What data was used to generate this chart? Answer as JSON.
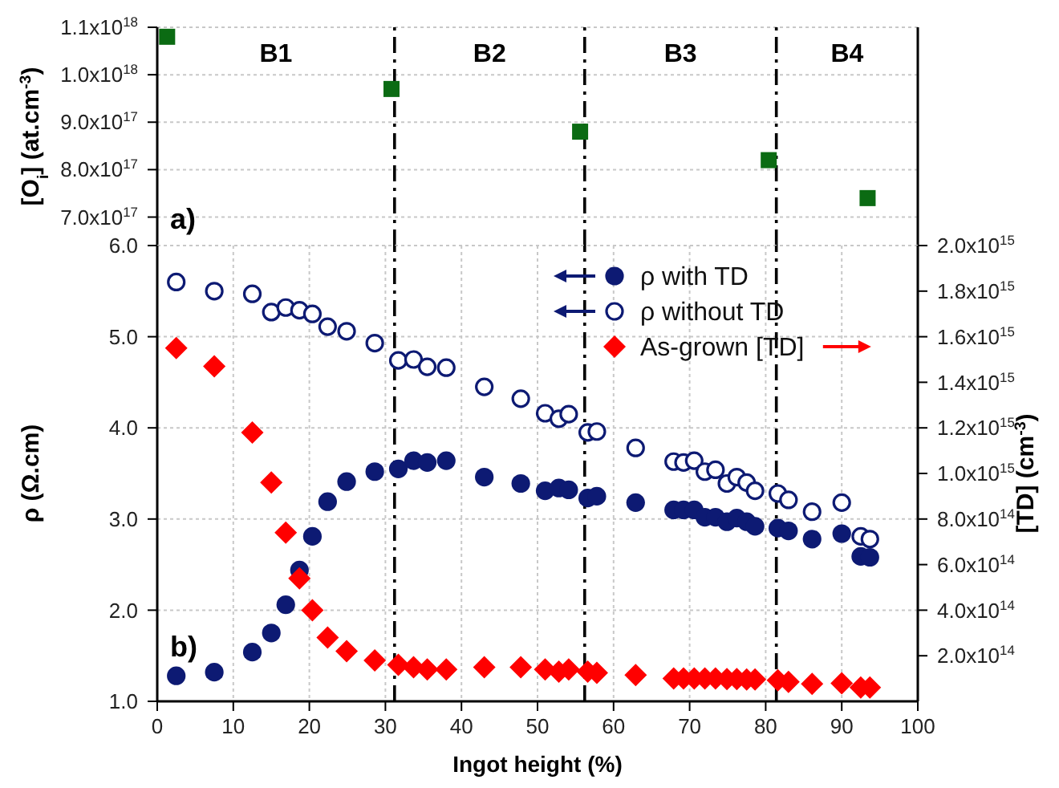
{
  "chart_data": [
    {
      "type": "scatter",
      "ylabel": "[O$_{i}$] (at.cm$^{-3}$)",
      "marker": "square",
      "grid": true,
      "tick_labels": "y",
      "legend": false,
      "x": [
        1.3,
        30.8,
        55.6,
        80.4,
        93.4
      ],
      "series": [
        {
          "color": "#0b6b13",
          "values": [
            1.08e+18,
            9.7e+17,
            8.8e+17,
            8.2e+17,
            7.4e+17
          ]
        }
      ],
      "xlim": [
        0,
        100
      ],
      "xticks": [
        0,
        10,
        20,
        30,
        40,
        50,
        60,
        70,
        80,
        90,
        100
      ],
      "ylim": [
        6.4e+17,
        1.1e+18
      ],
      "yticks": [
        {
          "value": 7e+17,
          "label": "7.0x10$^{17}$"
        },
        {
          "value": 8e+17,
          "label": "8.0x10$^{17}$"
        },
        {
          "value": 9e+17,
          "label": "9.0x10$^{17}$"
        },
        {
          "value": 1e+18,
          "label": "1.0x10$^{18}$"
        },
        {
          "value": 1.1e+18,
          "label": "1.1x10$^{18}$"
        }
      ],
      "ref_lines": [
        {
          "axis": "x",
          "value": 31.2,
          "color": "#000000",
          "line_style": "dashed"
        },
        {
          "axis": "x",
          "value": 56.2,
          "color": "#000000",
          "line_style": "dashed"
        },
        {
          "axis": "x",
          "value": 81.4,
          "color": "#000000",
          "line_style": "dashed"
        }
      ],
      "annotations": [
        "B1",
        "B2",
        "B3",
        "B4",
        "a)"
      ]
    },
    {
      "type": "scatter",
      "xlabel": "Ingot height (%)",
      "ylabel": "ρ (Ω.cm)",
      "y2label": "[TD] (cm$^{-3}$)",
      "grid": true,
      "legend": "top right",
      "x": [
        2.5,
        7.5,
        12.5,
        15,
        16.9,
        18.7,
        20.4,
        22.4,
        24.9,
        28.6,
        31.7,
        33.7,
        35.5,
        38,
        43,
        47.8,
        51,
        52.8,
        54.1,
        56.6,
        57.8,
        62.9,
        67.9,
        69.2,
        70.6,
        72,
        73.4,
        74.9,
        76.2,
        77.5,
        78.6,
        81.6,
        83,
        86.1,
        90,
        92.5,
        93.7
      ],
      "series": [
        {
          "name": "ρ with TD",
          "color": "#0d1a73",
          "marker": "circle",
          "values": [
            1.28,
            1.32,
            1.54,
            1.75,
            2.06,
            2.44,
            2.81,
            3.19,
            3.41,
            3.52,
            3.55,
            3.64,
            3.62,
            3.64,
            3.46,
            3.39,
            3.31,
            3.34,
            3.32,
            3.23,
            3.25,
            3.18,
            3.1,
            3.1,
            3.1,
            3.02,
            3.02,
            2.97,
            3.01,
            2.97,
            2.92,
            2.9,
            2.87,
            2.78,
            2.84,
            2.59,
            2.58
          ]
        },
        {
          "name": "ρ without TD",
          "color": "#0d1a73",
          "marker": "circle",
          "values": [
            5.6,
            5.5,
            5.47,
            5.27,
            5.32,
            5.29,
            5.25,
            5.11,
            5.06,
            4.93,
            4.74,
            4.75,
            4.67,
            4.66,
            4.45,
            4.32,
            4.16,
            4.1,
            4.15,
            3.95,
            3.96,
            3.78,
            3.63,
            3.62,
            3.64,
            3.52,
            3.54,
            3.39,
            3.46,
            3.4,
            3.31,
            3.28,
            3.21,
            3.08,
            3.18,
            2.81,
            2.78
          ]
        },
        {
          "name": "As-grown [TD]",
          "color": "#ff0000",
          "marker": "diamond",
          "axis": "y2",
          "values": [
            1550000000000000.0,
            1470000000000000.0,
            1180000000000000.0,
            960000000000000.0,
            740000000000000.0,
            540000000000000.0,
            400000000000000.0,
            280000000000000.0,
            220000000000000.0,
            180000000000000.0,
            160000000000000.0,
            150000000000000.0,
            140000000000000.0,
            140000000000000.0,
            150000000000000.0,
            150000000000000.0,
            140000000000000.0,
            130000000000000.0,
            140000000000000.0,
            130000000000000.0,
            125000000000000.0,
            115000000000000.0,
            100000000000000.0,
            100000000000000.0,
            100000000000000.0,
            100000000000000.0,
            100000000000000.0,
            98000000000000.0,
            98000000000000.0,
            96000000000000.0,
            96000000000000.0,
            92000000000000.0,
            85000000000000.0,
            77000000000000.0,
            79000000000000.0,
            61000000000000.0,
            61000000000000.0
          ]
        }
      ],
      "xlim": [
        0,
        100
      ],
      "xticks": [
        0,
        10,
        20,
        30,
        40,
        50,
        60,
        70,
        80,
        90,
        100
      ],
      "ylim": [
        1,
        6
      ],
      "yticks": [
        {
          "value": 1,
          "label": "1.0"
        },
        {
          "value": 2,
          "label": "2.0"
        },
        {
          "value": 3,
          "label": "3.0"
        },
        {
          "value": 4,
          "label": "4.0"
        },
        {
          "value": 5,
          "label": "5.0"
        },
        {
          "value": 6,
          "label": "6.0"
        }
      ],
      "y2lim": [
        0,
        2000000000000000.0
      ],
      "y2ticks": [
        {
          "value": 200000000000000.0,
          "label": "2.0x10$^{14}$"
        },
        {
          "value": 400000000000000.0,
          "label": "4.0x10$^{14}$"
        },
        {
          "value": 600000000000000.0,
          "label": "6.0x10$^{14}$"
        },
        {
          "value": 800000000000000.0,
          "label": "8.0x10$^{14}$"
        },
        {
          "value": 1000000000000000.0,
          "label": "1.0x10$^{15}$"
        },
        {
          "value": 1200000000000000.0,
          "label": "1.2x10$^{15}$"
        },
        {
          "value": 1400000000000000.0,
          "label": "1.4x10$^{15}$"
        },
        {
          "value": 1600000000000000.0,
          "label": "1.6x10$^{15}$"
        },
        {
          "value": 1800000000000000.0,
          "label": "1.8x10$^{15}$"
        },
        {
          "value": 2000000000000000.0,
          "label": "2.0x10$^{15}$"
        }
      ],
      "ref_lines": [
        {
          "axis": "x",
          "value": 31.2,
          "color": "#000000",
          "line_style": "dashed"
        },
        {
          "axis": "x",
          "value": 56.2,
          "color": "#000000",
          "line_style": "dashed"
        },
        {
          "axis": "x",
          "value": 81.4,
          "color": "#000000",
          "line_style": "dashed"
        }
      ],
      "annotations": [
        "b)"
      ]
    }
  ]
}
